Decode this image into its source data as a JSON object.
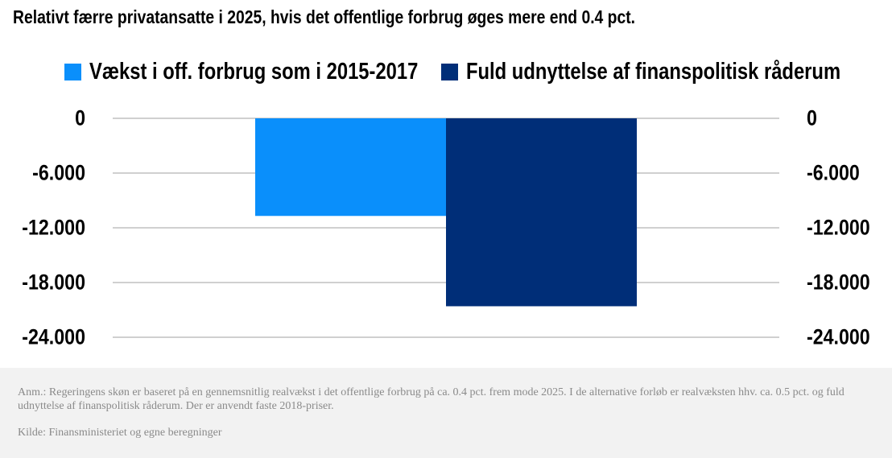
{
  "chart_data": {
    "type": "bar",
    "title": "Relativt færre privatansatte i 2025, hvis det offentlige forbrug øges mere end 0.4 pct.",
    "categories": [
      ""
    ],
    "series": [
      {
        "name": "Vækst i off. forbrug som i 2015-2017",
        "color": "#0a8ffb",
        "values": [
          -10700
        ]
      },
      {
        "name": "Fuld udnyttelse af finanspolitisk råderum",
        "color": "#002e78",
        "values": [
          -20600
        ]
      }
    ],
    "ylim": [
      -24000,
      0
    ],
    "yticks": [
      0,
      -6000,
      -12000,
      -18000,
      -24000
    ],
    "ytick_labels": [
      "0",
      "-6.000",
      "-12.000",
      "-18.000",
      "-24.000"
    ],
    "y_axis_both_sides": true,
    "grid": true,
    "legend_position": "top"
  },
  "footer": {
    "note": "Anm.: Regeringens skøn er baseret på en gennemsnitlig realvækst i det offentlige forbrug på ca. 0.4 pct. frem mode 2025. I de alternative forløb er realvæksten hhv. ca. 0.5 pct. og fuld udnyttelse af finanspolitisk råderum. Der er anvendt faste 2018-priser.",
    "source": "Kilde: Finansministeriet og egne beregninger"
  }
}
